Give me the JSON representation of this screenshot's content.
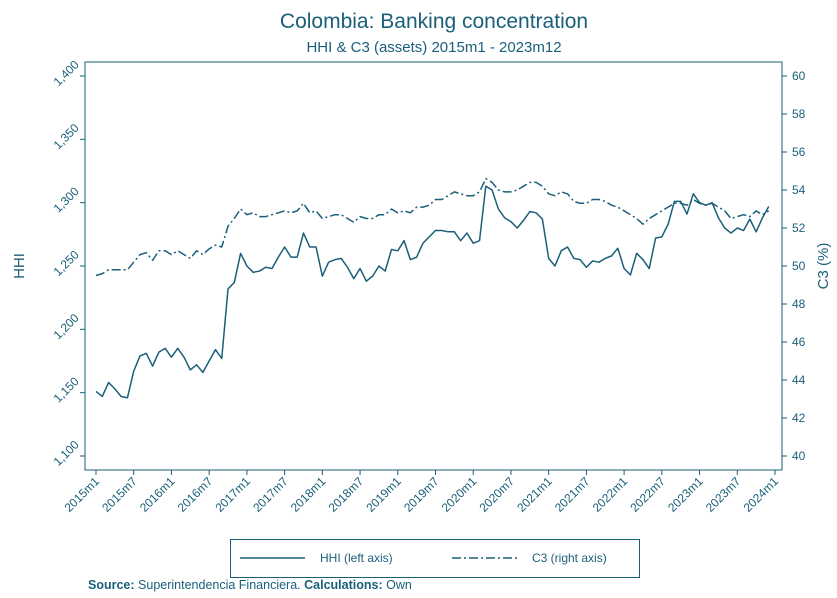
{
  "chart_data": {
    "type": "line",
    "title": "Colombia: Banking concentration",
    "subtitle": "HHI & C3 (assets) 2015m1 - 2023m12",
    "ylabel_left": "HHI",
    "ylabel_right": "C3 (%)",
    "ylim_left": [
      1100,
      1400
    ],
    "yticks_left": [
      "1,100",
      "1,150",
      "1,200",
      "1,250",
      "1,300",
      "1,350",
      "1,400"
    ],
    "ylim_right": [
      40,
      60
    ],
    "yticks_right": [
      "40",
      "42",
      "44",
      "46",
      "48",
      "50",
      "52",
      "54",
      "56",
      "58",
      "60"
    ],
    "xticks": [
      "2015m1",
      "2015m7",
      "2016m1",
      "2016m7",
      "2017m1",
      "2017m7",
      "2018m1",
      "2018m7",
      "2019m1",
      "2019m7",
      "2020m1",
      "2020m7",
      "2021m1",
      "2021m7",
      "2022m1",
      "2022m7",
      "2023m1",
      "2023m7",
      "2024m1"
    ],
    "x_start": "2015m1",
    "grid": false,
    "legend_position": "bottom",
    "series": [
      {
        "name": "HHI (left axis)",
        "axis": "left",
        "style": "solid",
        "values": [
          1151,
          1147,
          1158,
          1153,
          1147,
          1146,
          1167,
          1179,
          1181,
          1171,
          1182,
          1185,
          1178,
          1185,
          1178,
          1168,
          1172,
          1166,
          1175,
          1184,
          1177,
          1232,
          1237,
          1260,
          1250,
          1245,
          1246,
          1249,
          1248,
          1257,
          1265,
          1257,
          1257,
          1276,
          1265,
          1265,
          1242,
          1253,
          1255,
          1256,
          1249,
          1240,
          1248,
          1238,
          1242,
          1250,
          1246,
          1263,
          1262,
          1270,
          1255,
          1257,
          1268,
          1273,
          1278,
          1278,
          1277,
          1277,
          1270,
          1276,
          1268,
          1270,
          1313,
          1310,
          1295,
          1288,
          1285,
          1280,
          1286,
          1293,
          1292,
          1287,
          1256,
          1250,
          1262,
          1265,
          1256,
          1255,
          1249,
          1254,
          1253,
          1256,
          1258,
          1264,
          1248,
          1243,
          1260,
          1255,
          1248,
          1272,
          1273,
          1283,
          1301,
          1301,
          1291,
          1307,
          1300,
          1298,
          1300,
          1288,
          1280,
          1276,
          1280,
          1278,
          1287,
          1277,
          1288,
          1297
        ]
      },
      {
        "name": "C3 (right axis)",
        "axis": "right",
        "style": "dash-dot",
        "values": [
          49.5,
          49.6,
          49.8,
          49.8,
          49.8,
          49.8,
          50.2,
          50.6,
          50.7,
          50.3,
          50.8,
          50.8,
          50.6,
          50.8,
          50.6,
          50.4,
          50.8,
          50.6,
          50.9,
          51.1,
          51.0,
          52.1,
          52.5,
          53.0,
          52.7,
          52.8,
          52.6,
          52.6,
          52.7,
          52.8,
          52.9,
          52.8,
          52.9,
          53.3,
          52.8,
          52.9,
          52.5,
          52.6,
          52.7,
          52.7,
          52.5,
          52.3,
          52.6,
          52.5,
          52.5,
          52.7,
          52.7,
          53.0,
          52.8,
          52.9,
          52.8,
          53.1,
          53.1,
          53.2,
          53.5,
          53.5,
          53.7,
          53.9,
          53.8,
          53.7,
          53.7,
          53.9,
          54.6,
          54.4,
          54.0,
          53.9,
          53.9,
          54.0,
          54.2,
          54.4,
          54.4,
          54.2,
          53.8,
          53.7,
          53.9,
          53.8,
          53.4,
          53.3,
          53.3,
          53.5,
          53.5,
          53.4,
          53.2,
          53.1,
          52.9,
          52.7,
          52.5,
          52.2,
          52.5,
          52.7,
          52.9,
          53.1,
          53.3,
          53.3,
          53.2,
          53.5,
          53.3,
          53.2,
          53.3,
          53.1,
          52.9,
          52.5,
          52.6,
          52.7,
          52.6,
          52.9,
          52.7,
          52.9
        ]
      }
    ],
    "source_label": "Source:",
    "source_text": "Superintendencia Financiera.",
    "calc_label": "Calculations:",
    "calc_text": "Own",
    "colors": {
      "main": "#1a5f7a",
      "background": "#ffffff"
    }
  }
}
